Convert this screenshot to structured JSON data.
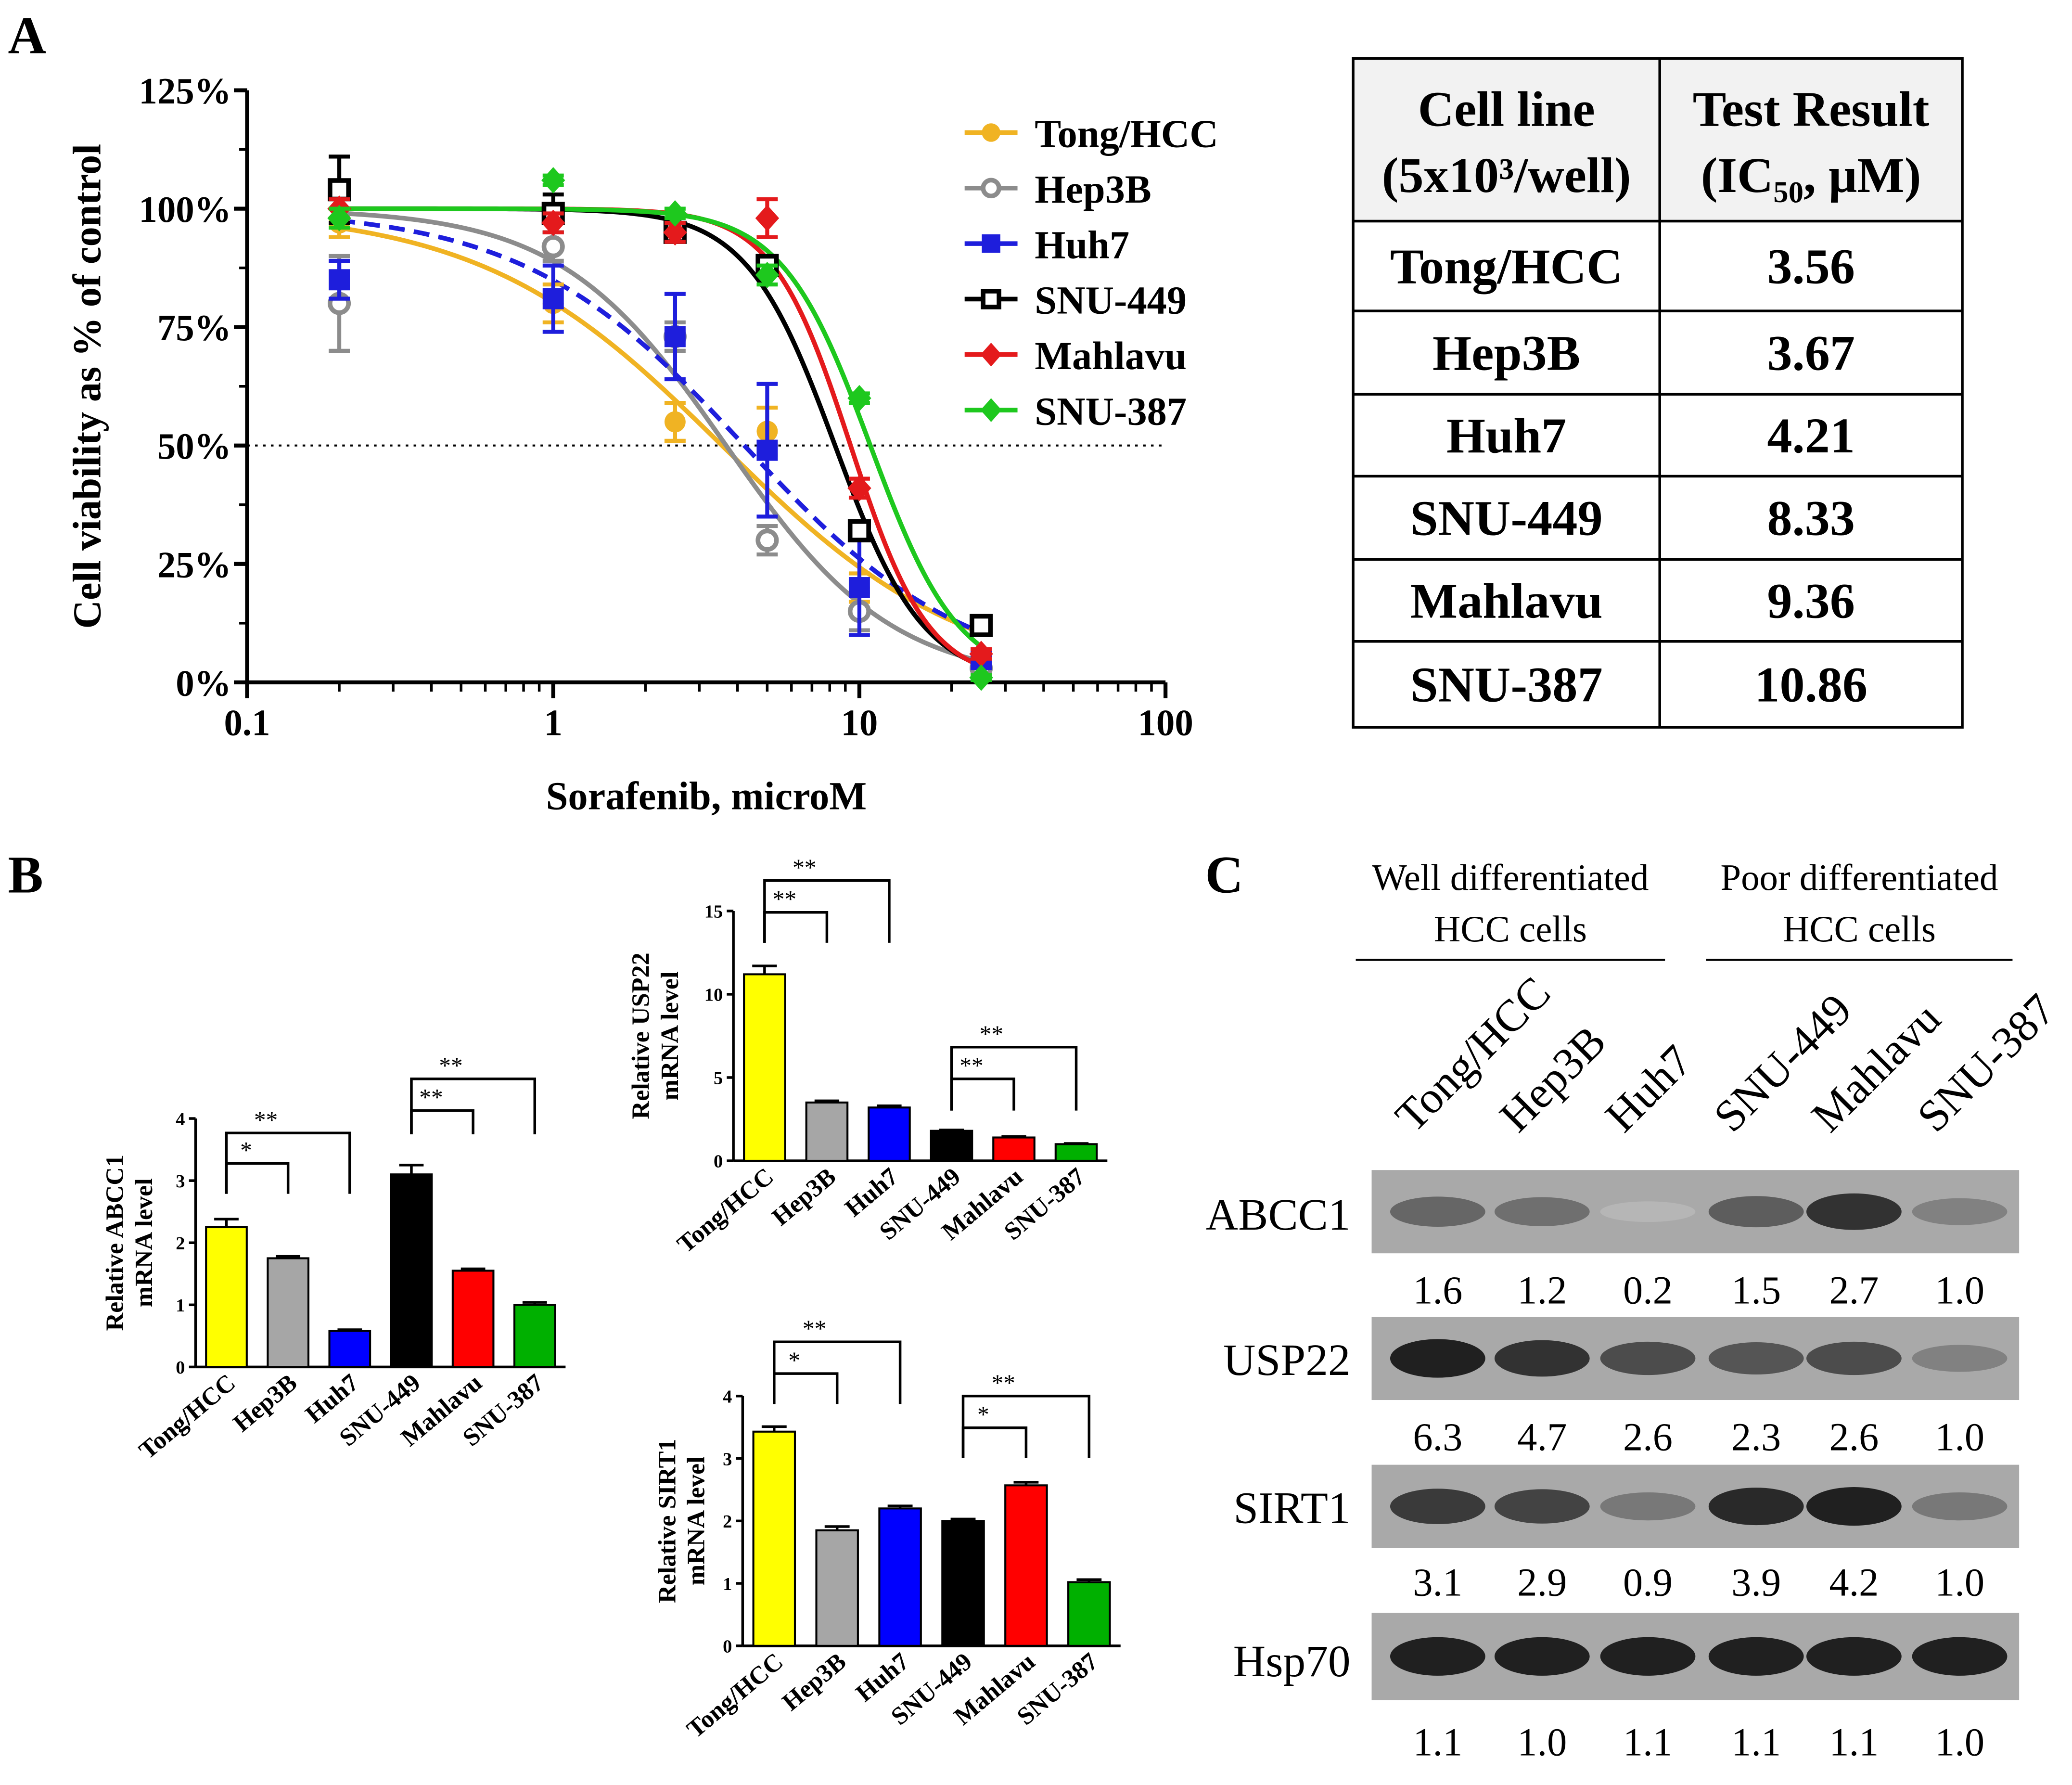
{
  "chart_data": [
    {
      "panel": "A",
      "type": "line",
      "xscale": "log",
      "xlabel": "Sorafenib, microM",
      "ylabel": "Cell viability as % of control",
      "xlim": [
        0.1,
        100
      ],
      "ylim": [
        0,
        125
      ],
      "xticks": [
        "0.1",
        "1",
        "10",
        "100"
      ],
      "yticks": [
        "0%",
        "25%",
        "50%",
        "75%",
        "100%",
        "125%"
      ],
      "reference_line": {
        "y": 50,
        "style": "dotted"
      },
      "x": [
        0.2,
        1,
        2.5,
        5,
        10,
        25
      ],
      "series": [
        {
          "name": "Tong/HCC",
          "color": "#f0b323",
          "marker": "filled-circle",
          "ic50": 3.56,
          "values": [
            97,
            80,
            55,
            53,
            20,
            5
          ],
          "errors": [
            3,
            4,
            4,
            5,
            3,
            2
          ]
        },
        {
          "name": "Hep3B",
          "color": "#8c8c8c",
          "marker": "open-circle",
          "ic50": 3.67,
          "values": [
            80,
            92,
            73,
            30,
            15,
            3
          ],
          "errors": [
            10,
            3,
            3,
            3,
            4,
            1
          ]
        },
        {
          "name": "Huh7",
          "color": "#1e1edc",
          "marker": "filled-square",
          "dashed_fit": true,
          "ic50": 4.21,
          "values": [
            85,
            81,
            73,
            49,
            20,
            5
          ],
          "errors": [
            4,
            7,
            9,
            14,
            10,
            2
          ]
        },
        {
          "name": "SNU-449",
          "color": "#000000",
          "marker": "open-square",
          "ic50": 8.33,
          "values": [
            104,
            99,
            95,
            88,
            32,
            12
          ],
          "errors": [
            7,
            4,
            2,
            2,
            2,
            1
          ]
        },
        {
          "name": "Mahlavu",
          "color": "#e41a1c",
          "marker": "filled-diamond",
          "ic50": 9.36,
          "values": [
            100,
            97,
            95,
            98,
            41,
            6
          ],
          "errors": [
            2,
            2,
            2,
            4,
            2,
            1
          ]
        },
        {
          "name": "SNU-387",
          "color": "#1ec81e",
          "marker": "filled-diamond",
          "ic50": 10.86,
          "values": [
            98,
            106,
            99,
            86,
            60,
            1
          ],
          "errors": [
            2,
            1,
            1,
            2,
            1,
            0.5
          ]
        }
      ]
    },
    {
      "panel": "A-table",
      "type": "table",
      "headers": [
        [
          "Cell line",
          "(5x10³/well)"
        ],
        [
          "Test Result",
          "(IC₅₀, μM)"
        ]
      ],
      "rows": [
        [
          "Tong/HCC",
          "3.56"
        ],
        [
          "Hep3B",
          "3.67"
        ],
        [
          "Huh7",
          "4.21"
        ],
        [
          "SNU-449",
          "8.33"
        ],
        [
          "Mahlavu",
          "9.36"
        ],
        [
          "SNU-387",
          "10.86"
        ]
      ]
    },
    {
      "panel": "B-ABCC1",
      "type": "bar",
      "ylabel": "Relative ABCC1 mRNA level",
      "ylim": [
        0,
        4
      ],
      "yticks": [
        "0",
        "1",
        "2",
        "3",
        "4"
      ],
      "categories": [
        "Tong/HCC",
        "Hep3B",
        "Huh7",
        "SNU-449",
        "Mahlavu",
        "SNU-387"
      ],
      "values": [
        2.25,
        1.75,
        0.58,
        3.1,
        1.55,
        1.0
      ],
      "errors": [
        0.13,
        0.03,
        0.02,
        0.15,
        0.03,
        0.04
      ],
      "colors": [
        "#ffff00",
        "#a6a6a6",
        "#0000ff",
        "#000000",
        "#ff0000",
        "#00b000"
      ],
      "significance": [
        {
          "from": 0,
          "to": 1,
          "label": "*"
        },
        {
          "from": 0,
          "to": 2,
          "label": "**"
        },
        {
          "from": 3,
          "to": 4,
          "label": "**"
        },
        {
          "from": 3,
          "to": 5,
          "label": "**"
        }
      ]
    },
    {
      "panel": "B-USP22",
      "type": "bar",
      "ylabel": "Relative USP22 mRNA level",
      "ylim": [
        0,
        15
      ],
      "yticks": [
        "0",
        "5",
        "10",
        "15"
      ],
      "categories": [
        "Tong/HCC",
        "Hep3B",
        "Huh7",
        "SNU-449",
        "Mahlavu",
        "SNU-387"
      ],
      "values": [
        11.2,
        3.5,
        3.2,
        1.8,
        1.4,
        1.0
      ],
      "errors": [
        0.5,
        0.1,
        0.1,
        0.05,
        0.05,
        0.04
      ],
      "colors": [
        "#ffff00",
        "#a6a6a6",
        "#0000ff",
        "#000000",
        "#ff0000",
        "#00b000"
      ],
      "significance": [
        {
          "from": 0,
          "to": 1,
          "label": "**"
        },
        {
          "from": 0,
          "to": 2,
          "label": "**"
        },
        {
          "from": 3,
          "to": 4,
          "label": "**"
        },
        {
          "from": 3,
          "to": 5,
          "label": "**"
        }
      ]
    },
    {
      "panel": "B-SIRT1",
      "type": "bar",
      "ylabel": "Relative SIRT1 mRNA level",
      "ylim": [
        0,
        4
      ],
      "yticks": [
        "0",
        "1",
        "2",
        "3",
        "4"
      ],
      "categories": [
        "Tong/HCC",
        "Hep3B",
        "Huh7",
        "SNU-449",
        "Mahlavu",
        "SNU-387"
      ],
      "values": [
        3.43,
        1.85,
        2.2,
        2.0,
        2.57,
        1.02
      ],
      "errors": [
        0.08,
        0.06,
        0.04,
        0.03,
        0.05,
        0.04
      ],
      "colors": [
        "#ffff00",
        "#a6a6a6",
        "#0000ff",
        "#000000",
        "#ff0000",
        "#00b000"
      ],
      "significance": [
        {
          "from": 0,
          "to": 1,
          "label": "*"
        },
        {
          "from": 0,
          "to": 2,
          "label": "**"
        },
        {
          "from": 3,
          "to": 4,
          "label": "*"
        },
        {
          "from": 3,
          "to": 5,
          "label": "**"
        }
      ]
    },
    {
      "panel": "C",
      "type": "western-blot",
      "groups": [
        {
          "label": [
            "Well differentiated",
            "HCC cells"
          ]
        },
        {
          "label": [
            "Poor differentiated",
            "HCC cells"
          ]
        }
      ],
      "lanes": [
        "Tong/HCC",
        "Hep3B",
        "Huh7",
        "SNU-449",
        "Mahlavu",
        "SNU-387"
      ],
      "blots": [
        {
          "name": "ABCC1",
          "values": [
            "1.6",
            "1.2",
            "0.2",
            "1.5",
            "2.7",
            "1.0"
          ],
          "intensity": [
            0.55,
            0.5,
            0.1,
            0.6,
            0.85,
            0.4
          ]
        },
        {
          "name": "USP22",
          "values": [
            "6.3",
            "4.7",
            "2.6",
            "2.3",
            "2.6",
            "1.0"
          ],
          "intensity": [
            0.95,
            0.85,
            0.7,
            0.65,
            0.7,
            0.4
          ]
        },
        {
          "name": "SIRT1",
          "values": [
            "3.1",
            "2.9",
            "0.9",
            "3.9",
            "4.2",
            "1.0"
          ],
          "intensity": [
            0.8,
            0.75,
            0.45,
            0.9,
            0.95,
            0.45
          ]
        },
        {
          "name": "Hsp70",
          "values": [
            "1.1",
            "1.0",
            "1.1",
            "1.1",
            "1.1",
            "1.0"
          ],
          "intensity": [
            0.95,
            0.95,
            0.95,
            0.95,
            0.95,
            0.95
          ]
        }
      ]
    }
  ],
  "panel_labels": [
    "A",
    "B",
    "C"
  ]
}
